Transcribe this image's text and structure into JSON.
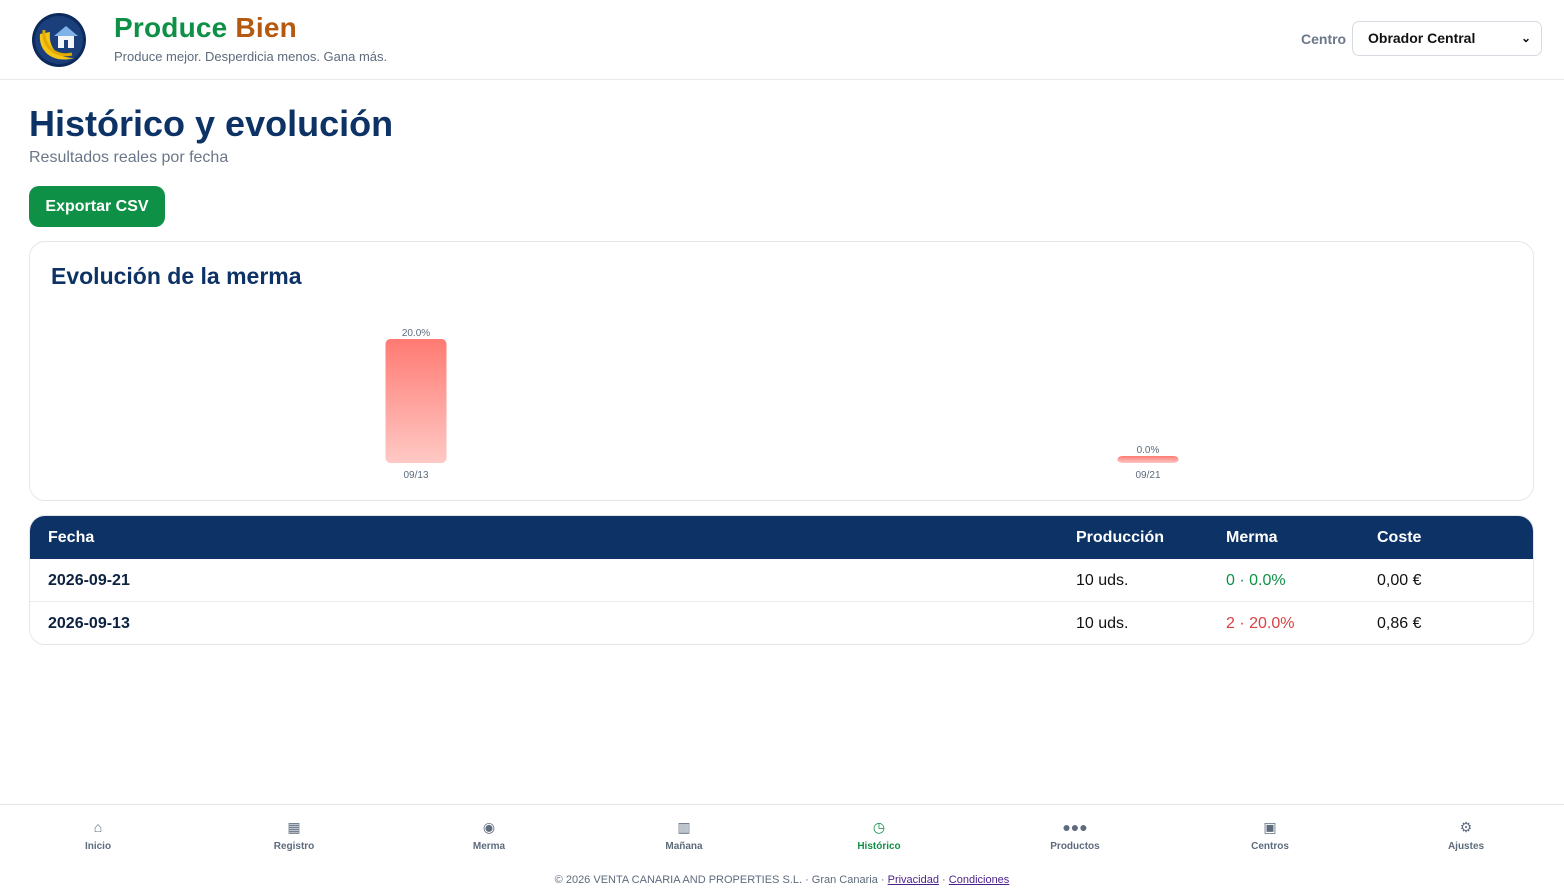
{
  "header": {
    "brand_word1": "Produce",
    "brand_word2": "Bien",
    "tagline": "Produce mejor. Desperdicia menos. Gana más.",
    "centro_label": "Centro",
    "centro_selected": "Obrador Central"
  },
  "main": {
    "title": "Histórico y evolución",
    "subtitle": "Resultados reales por fecha",
    "export_label": "Exportar CSV"
  },
  "chart_card": {
    "title": "Evolución de la merma"
  },
  "chart_data": {
    "type": "bar",
    "categories": [
      "09/13",
      "09/21"
    ],
    "values": [
      20.0,
      0.0
    ],
    "value_labels": [
      "20.0%",
      "0.0%"
    ],
    "title": "Evolución de la merma",
    "xlabel": "",
    "ylabel": "",
    "ylim": [
      0,
      20
    ],
    "colors": [
      "#ff7a72",
      "#ffc9c5"
    ],
    "grid": false
  },
  "table": {
    "headers": [
      "Fecha",
      "Producción",
      "Merma",
      "Coste"
    ],
    "rows": [
      {
        "fecha": "2026-09-21",
        "produccion": "10 uds.",
        "merma": "0 · 0.0%",
        "coste": "0,00 €",
        "status": "ok"
      },
      {
        "fecha": "2026-09-13",
        "produccion": "10 uds.",
        "merma": "2 · 20.0%",
        "coste": "0,86 €",
        "status": "bad"
      }
    ]
  },
  "nav": {
    "items": [
      {
        "label": "Inicio",
        "icon": "⌂",
        "icon_name": "home-icon"
      },
      {
        "label": "Registro",
        "icon": "▦",
        "icon_name": "grid-icon"
      },
      {
        "label": "Merma",
        "icon": "◉",
        "icon_name": "target-icon"
      },
      {
        "label": "Mañana",
        "icon": "▥",
        "icon_name": "calendar-icon"
      },
      {
        "label": "Histórico",
        "icon": "◷",
        "icon_name": "clock-icon"
      },
      {
        "label": "Productos",
        "icon": "●●●",
        "icon_name": "dots-icon"
      },
      {
        "label": "Centros",
        "icon": "▣",
        "icon_name": "building-icon"
      },
      {
        "label": "Ajustes",
        "icon": "⚙",
        "icon_name": "gear-icon"
      }
    ],
    "active": "Histórico"
  },
  "footer": {
    "text": "© 2026 VENTA CANARIA AND PROPERTIES S.L. · Gran Canaria ·",
    "sep": "·",
    "privacy": "Privacidad",
    "terms": "Condiciones"
  },
  "colors": {
    "brand_green": "#0e9146",
    "brand_orange": "#b5590f",
    "navy": "#0d3366",
    "danger": "#d94040"
  }
}
